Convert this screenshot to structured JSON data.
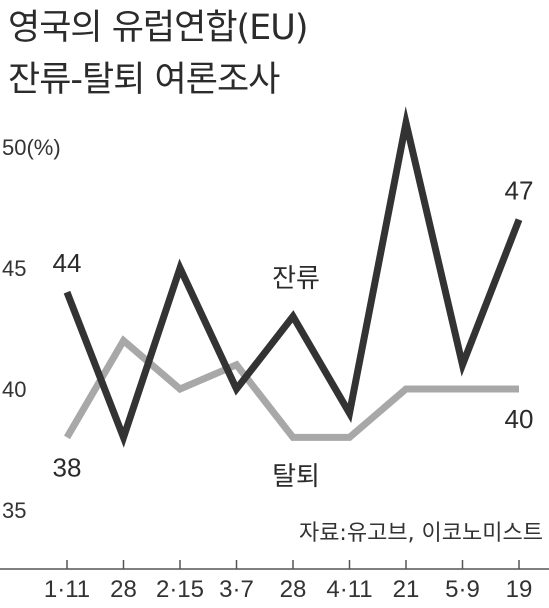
{
  "title": {
    "line1": "영국의 유럽연합(EU)",
    "line2": "잔류-탈퇴 여론조사"
  },
  "source": "자료:유고브, 이코노미스트",
  "chart_data": {
    "type": "line",
    "title": "영국의 유럽연합(EU) 잔류-탈퇴 여론조사",
    "categories": [
      "1·11",
      "28",
      "2·15",
      "3·7",
      "28",
      "4·11",
      "21",
      "5·9",
      "19"
    ],
    "yticks": [
      {
        "value": 50,
        "label": "50(%)"
      },
      {
        "value": 45,
        "label": "45"
      },
      {
        "value": 40,
        "label": "40"
      },
      {
        "value": 35,
        "label": "35"
      }
    ],
    "ylim": [
      35,
      51.5
    ],
    "series": [
      {
        "name": "잔류",
        "color": "#333333",
        "values": [
          44,
          38,
          45,
          40,
          43,
          39,
          51,
          41,
          47
        ],
        "labels": [
          {
            "index": 0,
            "text": "44",
            "position": "above"
          },
          {
            "index": 8,
            "text": "47",
            "position": "above"
          }
        ]
      },
      {
        "name": "탈퇴",
        "color": "#a8a8a8",
        "values": [
          38,
          42,
          40,
          41,
          38,
          38,
          40,
          40,
          40
        ],
        "labels": [
          {
            "index": 0,
            "text": "38",
            "position": "below"
          },
          {
            "index": 8,
            "text": "40",
            "position": "below"
          }
        ]
      }
    ],
    "grid": false,
    "legend": "inline"
  }
}
